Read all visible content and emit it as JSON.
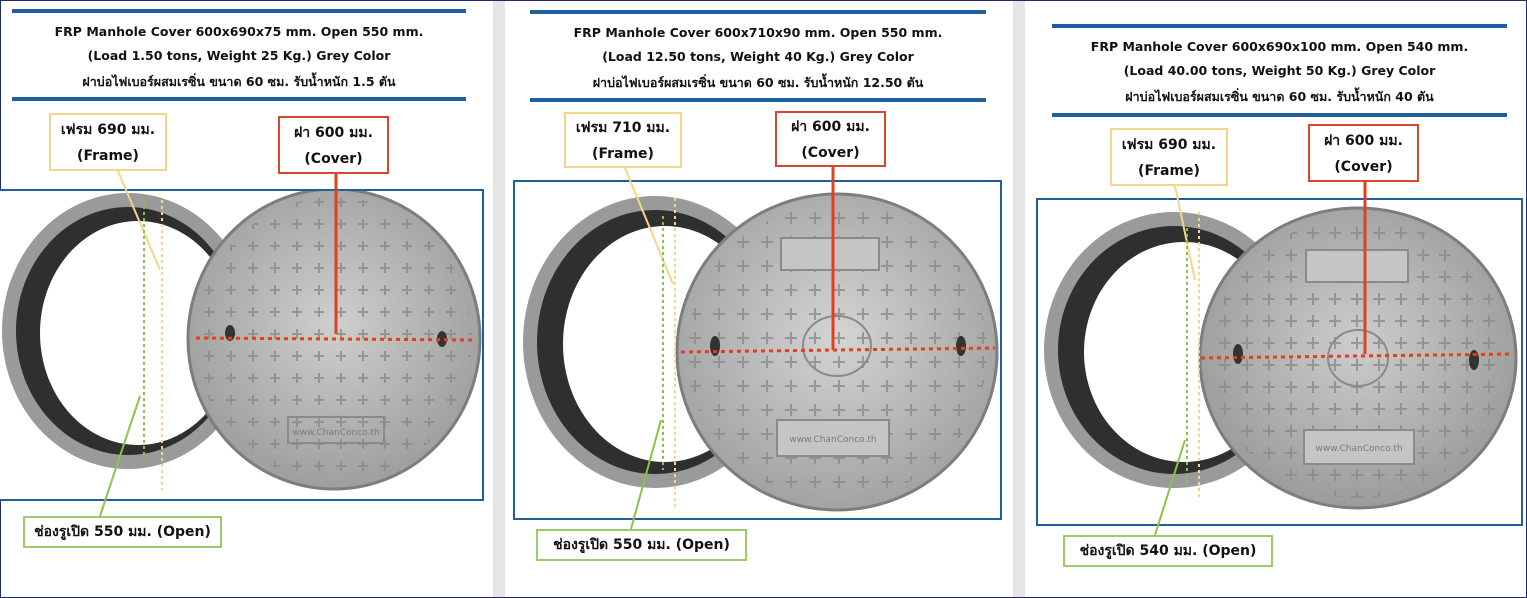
{
  "panels": [
    {
      "title": "FRP Manhole Cover 600x690x75 mm. Open 550 mm.",
      "spec": "(Load 1.50 tons, Weight 25 Kg.) Grey Color",
      "thai": "ฝาบ่อไฟเบอร์ผสมเรซิ่น ขนาด 60 ซม. รับน้ำหนัก 1.5 ตัน",
      "frame_label": "เฟรม  690 มม.",
      "frame_sub": "(Frame)",
      "cover_label": "ฝา 600 มม.",
      "cover_sub": "(Cover)",
      "open_label": "ช่องรูเปิด 550 มม. (Open)",
      "cover_text": "www.ChanConco.th"
    },
    {
      "title": "FRP Manhole Cover 600x710x90 mm. Open 550 mm.",
      "spec": "(Load 12.50 tons, Weight 40 Kg.) Grey Color",
      "thai": "ฝาบ่อไฟเบอร์ผสมเรซิ่น ขนาด 60 ซม. รับน้ำหนัก 12.50 ตัน",
      "frame_label": "เฟรม  710 มม.",
      "frame_sub": "(Frame)",
      "cover_label": "ฝา 600 มม.",
      "cover_sub": "(Cover)",
      "open_label": "ช่องรูเปิด 550 มม. (Open)",
      "cover_text": "www.ChanConco.th"
    },
    {
      "title": "FRP Manhole Cover 600x690x100 mm. Open 540 mm.",
      "spec": "(Load 40.00 tons, Weight 50 Kg.) Grey Color",
      "thai": "ฝาบ่อไฟเบอร์ผสมเรซิ่น ขนาด 60 ซม. รับน้ำหนัก 40 ตัน",
      "frame_label": "เฟรม  690 มม.",
      "frame_sub": "(Frame)",
      "cover_label": "ฝา 600 มม.",
      "cover_sub": "(Cover)",
      "open_label": "ช่องรูเปิด 540 มม. (Open)",
      "cover_text": "www.ChanConco.th"
    }
  ],
  "colors": {
    "rule": "#1f5f9e",
    "frame_arrow": "#f5d58a",
    "cover_arrow": "#e0401f",
    "open_arrow": "#8bc34a"
  },
  "icons": [
    "manhole-frame-ring",
    "manhole-cover-disc",
    "dimension-arrow"
  ]
}
